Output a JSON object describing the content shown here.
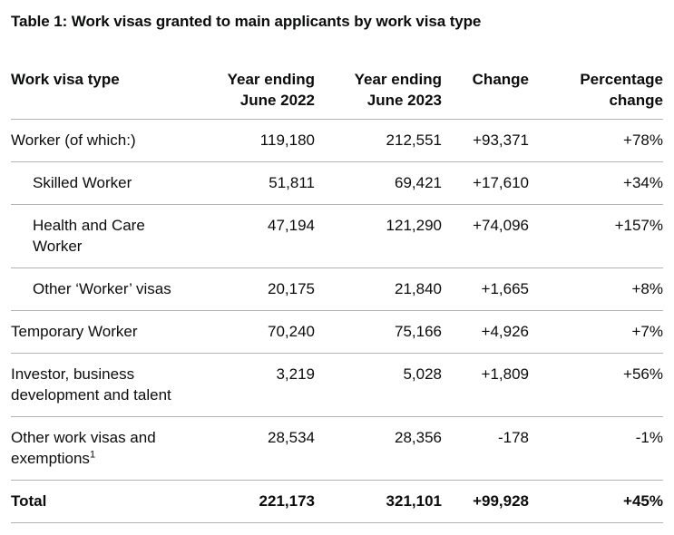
{
  "page": {
    "title": "Table 1: Work visas granted to main applicants by work visa type",
    "colors": {
      "background": "#ffffff",
      "text": "#0b0c0c",
      "rule": "#b1b4b6"
    }
  },
  "table": {
    "headers": {
      "visa_type": "Work visa type",
      "ye2022": "Year ending June 2022",
      "ye2023": "Year ending June 2023",
      "change": "Change",
      "percent": "Percentage change"
    },
    "rows": [
      {
        "label": "Worker (of which:)",
        "ye2022": "119,180",
        "ye2023": "212,551",
        "change": "+93,371",
        "percent": "+78%"
      },
      {
        "label": "Skilled Worker",
        "ye2022": "51,811",
        "ye2023": "69,421",
        "change": "+17,610",
        "percent": "+34%"
      },
      {
        "label": "Health and Care Worker",
        "ye2022": "47,194",
        "ye2023": "121,290",
        "change": "+74,096",
        "percent": "+157%"
      },
      {
        "label": "Other ‘Worker’ visas",
        "ye2022": "20,175",
        "ye2023": "21,840",
        "change": "+1,665",
        "percent": "+8%"
      },
      {
        "label": "Temporary Worker",
        "ye2022": "70,240",
        "ye2023": "75,166",
        "change": "+4,926",
        "percent": "+7%"
      },
      {
        "label": "Investor, business development and talent",
        "ye2022": "3,219",
        "ye2023": "5,028",
        "change": "+1,809",
        "percent": "+56%"
      },
      {
        "label": "Other work visas and exemptions",
        "footnote_marker": "1",
        "ye2022": "28,534",
        "ye2023": "28,356",
        "change": "-178",
        "percent": "-1%"
      },
      {
        "label": "Total",
        "ye2022": "221,173",
        "ye2023": "321,101",
        "change": "+99,928",
        "percent": "+45%"
      }
    ]
  },
  "chart_data": {
    "type": "table",
    "title": "Table 1: Work visas granted to main applicants by work visa type",
    "columns": [
      "Work visa type",
      "Year ending June 2022",
      "Year ending June 2023",
      "Change",
      "Percentage change"
    ],
    "rows": [
      {
        "work_visa_type": "Worker (of which:)",
        "subcategory_of_worker": false,
        "year_ending_june_2022": 119180,
        "year_ending_june_2023": 212551,
        "change": 93371,
        "percentage_change": 78
      },
      {
        "work_visa_type": "Skilled Worker",
        "subcategory_of_worker": true,
        "year_ending_june_2022": 51811,
        "year_ending_june_2023": 69421,
        "change": 17610,
        "percentage_change": 34
      },
      {
        "work_visa_type": "Health and Care Worker",
        "subcategory_of_worker": true,
        "year_ending_june_2022": 47194,
        "year_ending_june_2023": 121290,
        "change": 74096,
        "percentage_change": 157
      },
      {
        "work_visa_type": "Other ‘Worker’ visas",
        "subcategory_of_worker": true,
        "year_ending_june_2022": 20175,
        "year_ending_june_2023": 21840,
        "change": 1665,
        "percentage_change": 8
      },
      {
        "work_visa_type": "Temporary Worker",
        "subcategory_of_worker": false,
        "year_ending_june_2022": 70240,
        "year_ending_june_2023": 75166,
        "change": 4926,
        "percentage_change": 7
      },
      {
        "work_visa_type": "Investor, business development and talent",
        "subcategory_of_worker": false,
        "year_ending_june_2022": 3219,
        "year_ending_june_2023": 5028,
        "change": 1809,
        "percentage_change": 56
      },
      {
        "work_visa_type": "Other work visas and exemptions",
        "footnote": "1",
        "subcategory_of_worker": false,
        "year_ending_june_2022": 28534,
        "year_ending_june_2023": 28356,
        "change": -178,
        "percentage_change": -1
      },
      {
        "work_visa_type": "Total",
        "subcategory_of_worker": false,
        "year_ending_june_2022": 221173,
        "year_ending_june_2023": 321101,
        "change": 99928,
        "percentage_change": 45
      }
    ]
  }
}
